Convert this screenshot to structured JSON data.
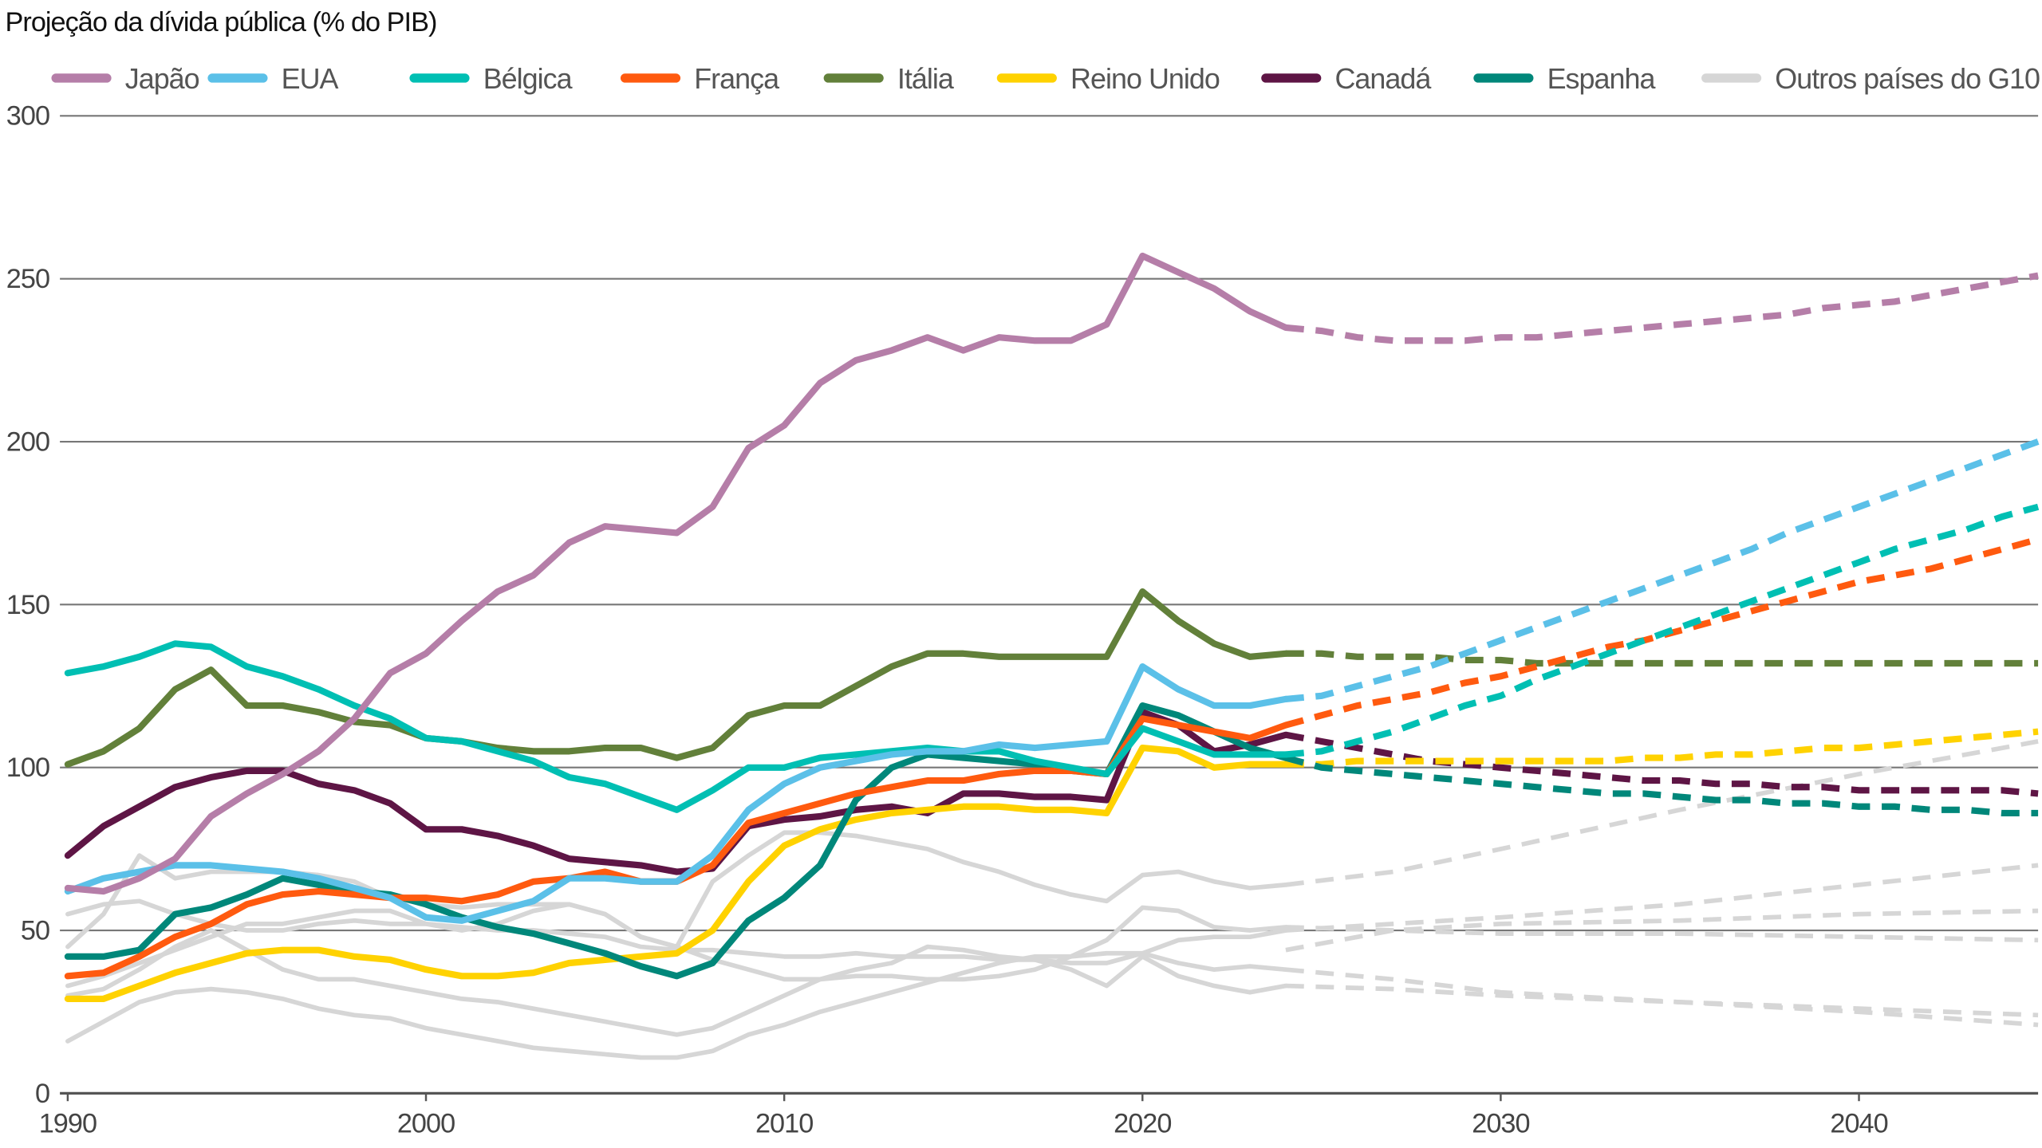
{
  "chart_data": {
    "type": "line",
    "title": "Projeção da dívida pública (% do PIB)",
    "xlabel": "",
    "ylabel": "",
    "xlim": [
      1990,
      2045
    ],
    "ylim": [
      0,
      300
    ],
    "x_ticks": [
      1990,
      2000,
      2010,
      2020,
      2030,
      2040
    ],
    "y_ticks": [
      0,
      50,
      100,
      150,
      200,
      250,
      300
    ],
    "grid": "horizontal",
    "legend_position": "top",
    "historical_years": [
      1990,
      1991,
      1992,
      1993,
      1994,
      1995,
      1996,
      1997,
      1998,
      1999,
      2000,
      2001,
      2002,
      2003,
      2004,
      2005,
      2006,
      2007,
      2008,
      2009,
      2010,
      2011,
      2012,
      2013,
      2014,
      2015,
      2016,
      2017,
      2018,
      2019,
      2020,
      2021,
      2022,
      2023,
      2024
    ],
    "projection_style": "dashed",
    "series": [
      {
        "name": "Japão",
        "color": "#B57EA8",
        "values": [
          63,
          62,
          66,
          72,
          85,
          92,
          98,
          105,
          115,
          129,
          135,
          145,
          154,
          159,
          169,
          174,
          173,
          172,
          180,
          198,
          205,
          218,
          225,
          228,
          232,
          228,
          232,
          231,
          231,
          236,
          257,
          252,
          247,
          240,
          235
        ],
        "projection_years": [
          2024,
          2025,
          2026,
          2027,
          2028,
          2029,
          2030,
          2031,
          2032,
          2033,
          2034,
          2035,
          2036,
          2037,
          2038,
          2039,
          2040,
          2041,
          2042,
          2043,
          2044,
          2045
        ],
        "projection": [
          235,
          234,
          232,
          231,
          231,
          231,
          232,
          232,
          233,
          234,
          235,
          236,
          237,
          238,
          239,
          241,
          242,
          243,
          245,
          247,
          249,
          251
        ]
      },
      {
        "name": "EUA",
        "color": "#5BC0E8",
        "values": [
          62,
          66,
          68,
          70,
          70,
          69,
          68,
          66,
          63,
          60,
          54,
          53,
          56,
          59,
          66,
          66,
          65,
          65,
          73,
          87,
          95,
          100,
          102,
          104,
          105,
          105,
          107,
          106,
          107,
          108,
          131,
          124,
          119,
          119,
          121
        ],
        "projection_years": [
          2024,
          2025,
          2026,
          2027,
          2028,
          2029,
          2030,
          2031,
          2032,
          2033,
          2034,
          2035,
          2036,
          2037,
          2038,
          2039,
          2040,
          2041,
          2042,
          2043,
          2044,
          2045
        ],
        "projection": [
          121,
          122,
          125,
          128,
          131,
          135,
          139,
          143,
          147,
          151,
          155,
          159,
          163,
          167,
          172,
          176,
          180,
          184,
          188,
          192,
          196,
          200
        ]
      },
      {
        "name": "Bélgica",
        "color": "#00BFB3",
        "values": [
          129,
          131,
          134,
          138,
          137,
          131,
          128,
          124,
          119,
          115,
          109,
          108,
          105,
          102,
          97,
          95,
          91,
          87,
          93,
          100,
          100,
          103,
          104,
          105,
          106,
          105,
          105,
          102,
          100,
          98,
          112,
          108,
          104,
          104,
          104
        ],
        "projection_years": [
          2024,
          2025,
          2026,
          2027,
          2028,
          2029,
          2030,
          2031,
          2032,
          2033,
          2034,
          2035,
          2036,
          2037,
          2038,
          2039,
          2040,
          2041,
          2042,
          2043,
          2044,
          2045
        ],
        "projection": [
          104,
          105,
          108,
          111,
          115,
          119,
          122,
          127,
          131,
          135,
          139,
          143,
          147,
          151,
          155,
          159,
          163,
          167,
          170,
          173,
          177,
          180
        ]
      },
      {
        "name": "França",
        "color": "#FF5A0F",
        "values": [
          36,
          37,
          42,
          48,
          52,
          58,
          61,
          62,
          61,
          60,
          60,
          59,
          61,
          65,
          66,
          68,
          65,
          65,
          70,
          83,
          86,
          89,
          92,
          94,
          96,
          96,
          98,
          99,
          99,
          98,
          115,
          113,
          111,
          109,
          113
        ],
        "projection_years": [
          2024,
          2025,
          2026,
          2027,
          2028,
          2029,
          2030,
          2031,
          2032,
          2033,
          2034,
          2035,
          2036,
          2037,
          2038,
          2039,
          2040,
          2041,
          2042,
          2043,
          2044,
          2045
        ],
        "projection": [
          113,
          116,
          119,
          121,
          123,
          126,
          128,
          131,
          134,
          137,
          139,
          142,
          145,
          148,
          151,
          154,
          157,
          159,
          161,
          164,
          167,
          170
        ]
      },
      {
        "name": "Itália",
        "color": "#62803A",
        "values": [
          101,
          105,
          112,
          124,
          130,
          119,
          119,
          117,
          114,
          113,
          109,
          108,
          106,
          105,
          105,
          106,
          106,
          103,
          106,
          116,
          119,
          119,
          125,
          131,
          135,
          135,
          134,
          134,
          134,
          134,
          154,
          145,
          138,
          134,
          135
        ],
        "projection_years": [
          2024,
          2025,
          2026,
          2027,
          2028,
          2029,
          2030,
          2031,
          2032,
          2033,
          2034,
          2035,
          2036,
          2037,
          2038,
          2039,
          2040,
          2041,
          2042,
          2043,
          2044,
          2045
        ],
        "projection": [
          135,
          135,
          134,
          134,
          134,
          133,
          133,
          132,
          132,
          132,
          132,
          132,
          132,
          132,
          132,
          132,
          132,
          132,
          132,
          132,
          132,
          132
        ]
      },
      {
        "name": "Reino Unido",
        "color": "#FFD200",
        "values": [
          29,
          29,
          33,
          37,
          40,
          43,
          44,
          44,
          42,
          41,
          38,
          36,
          36,
          37,
          40,
          41,
          42,
          43,
          50,
          65,
          76,
          81,
          84,
          86,
          87,
          88,
          88,
          87,
          87,
          86,
          106,
          105,
          100,
          101,
          101
        ],
        "projection_years": [
          2024,
          2025,
          2026,
          2027,
          2028,
          2029,
          2030,
          2031,
          2032,
          2033,
          2034,
          2035,
          2036,
          2037,
          2038,
          2039,
          2040,
          2041,
          2042,
          2043,
          2044,
          2045
        ],
        "projection": [
          101,
          101,
          102,
          102,
          102,
          102,
          102,
          102,
          102,
          102,
          103,
          103,
          104,
          104,
          105,
          106,
          106,
          107,
          108,
          109,
          110,
          111
        ]
      },
      {
        "name": "Canadá",
        "color": "#5E1545",
        "values": [
          73,
          82,
          88,
          94,
          97,
          99,
          99,
          95,
          93,
          89,
          81,
          81,
          79,
          76,
          72,
          71,
          70,
          68,
          69,
          82,
          84,
          85,
          87,
          88,
          86,
          92,
          92,
          91,
          91,
          90,
          117,
          113,
          105,
          107,
          110
        ],
        "projection_years": [
          2024,
          2025,
          2026,
          2027,
          2028,
          2029,
          2030,
          2031,
          2032,
          2033,
          2034,
          2035,
          2036,
          2037,
          2038,
          2039,
          2040,
          2041,
          2042,
          2043,
          2044,
          2045
        ],
        "projection": [
          110,
          108,
          106,
          104,
          102,
          101,
          100,
          99,
          98,
          97,
          96,
          96,
          95,
          95,
          94,
          94,
          93,
          93,
          93,
          93,
          93,
          92
        ]
      },
      {
        "name": "Espanha",
        "color": "#00877A",
        "values": [
          42,
          42,
          44,
          55,
          57,
          61,
          66,
          64,
          62,
          61,
          58,
          54,
          51,
          49,
          46,
          43,
          39,
          36,
          40,
          53,
          60,
          70,
          90,
          100,
          104,
          103,
          102,
          101,
          99,
          98,
          119,
          116,
          111,
          106,
          103
        ],
        "projection_years": [
          2024,
          2025,
          2026,
          2027,
          2028,
          2029,
          2030,
          2031,
          2032,
          2033,
          2034,
          2035,
          2036,
          2037,
          2038,
          2039,
          2040,
          2041,
          2042,
          2043,
          2044,
          2045
        ],
        "projection": [
          103,
          100,
          99,
          98,
          97,
          96,
          95,
          94,
          93,
          92,
          92,
          91,
          90,
          90,
          89,
          89,
          88,
          88,
          87,
          87,
          86,
          86
        ]
      },
      {
        "name": "Outros países do G10",
        "color": "#D6D6D6",
        "lines": [
          {
            "values": [
              45,
              55,
              73,
              66,
              68,
              68,
              68,
              67,
              65,
              60,
              58,
              57,
              58,
              58,
              58,
              55,
              48,
              45,
              65,
              73,
              80,
              80,
              79,
              77,
              75,
              71,
              68,
              64,
              61,
              59,
              67,
              68,
              65,
              63,
              64
            ],
            "projection_years": [
              2024,
              2027,
              2030,
              2035,
              2040,
              2045
            ],
            "projection": [
              64,
              68,
              75,
              87,
              98,
              108
            ]
          },
          {
            "values": [
              55,
              58,
              59,
              55,
              52,
              50,
              50,
              52,
              53,
              52,
              52,
              51,
              50,
              50,
              49,
              48,
              45,
              44,
              44,
              43,
              42,
              42,
              43,
              42,
              42,
              42,
              41,
              41,
              40,
              40,
              43,
              40,
              38,
              39,
              38
            ],
            "projection_years": [
              2024,
              2027,
              2030,
              2035,
              2040,
              2045
            ],
            "projection": [
              38,
              35,
              31,
              28,
              26,
              24
            ]
          },
          {
            "values": [
              33,
              36,
              40,
              44,
              48,
              52,
              52,
              54,
              56,
              56,
              52,
              50,
              52,
              56,
              58,
              55,
              48,
              45,
              41,
              38,
              35,
              35,
              36,
              36,
              35,
              35,
              36,
              38,
              42,
              47,
              57,
              56,
              51,
              50,
              51
            ],
            "projection_years": [
              2024,
              2027,
              2030,
              2035,
              2040,
              2045
            ],
            "projection": [
              51,
              50,
              49,
              49,
              48,
              47
            ]
          },
          {
            "values": [
              30,
              32,
              38,
              45,
              50,
              44,
              38,
              35,
              35,
              33,
              31,
              29,
              28,
              26,
              24,
              22,
              20,
              18,
              20,
              25,
              30,
              35,
              38,
              40,
              45,
              44,
              42,
              41,
              38,
              33,
              42,
              36,
              33,
              31,
              33
            ],
            "projection_years": [
              2024,
              2027,
              2030,
              2035,
              2040,
              2045
            ],
            "projection": [
              33,
              32,
              30,
              28,
              25,
              21
            ]
          },
          {
            "values": [
              16,
              22,
              28,
              31,
              32,
              31,
              29,
              26,
              24,
              23,
              20,
              18,
              16,
              14,
              13,
              12,
              11,
              11,
              13,
              18,
              21,
              25,
              28,
              31,
              34,
              37,
              40,
              42,
              42,
              43,
              43,
              47,
              48,
              48,
              50
            ],
            "projection_years": [
              2024,
              2027,
              2030,
              2035,
              2040,
              2045
            ],
            "projection": [
              50,
              52,
              54,
              58,
              64,
              70
            ]
          },
          {
            "projection_years": [
              2024,
              2027,
              2030,
              2035,
              2040,
              2045
            ],
            "projection": [
              44,
              50,
              52,
              53,
              55,
              56
            ]
          }
        ]
      }
    ]
  }
}
